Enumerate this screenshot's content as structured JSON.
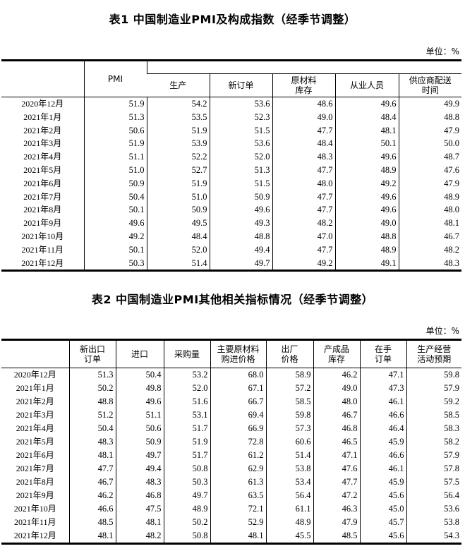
{
  "table1": {
    "title": "表1    中国制造业PMI及构成指数（经季节调整）",
    "unit": "单位：%",
    "headers": [
      "",
      "PMI",
      "生产",
      "新订单",
      "原材料\n库存",
      "从业人员",
      "供应商配送\n时间"
    ],
    "rows": [
      [
        "2020年12月",
        "51.9",
        "54.2",
        "53.6",
        "48.6",
        "49.6",
        "49.9"
      ],
      [
        "2021年1月",
        "51.3",
        "53.5",
        "52.3",
        "49.0",
        "48.4",
        "48.8"
      ],
      [
        "2021年2月",
        "50.6",
        "51.9",
        "51.5",
        "47.7",
        "48.1",
        "47.9"
      ],
      [
        "2021年3月",
        "51.9",
        "53.9",
        "53.6",
        "48.4",
        "50.1",
        "50.0"
      ],
      [
        "2021年4月",
        "51.1",
        "52.2",
        "52.0",
        "48.3",
        "49.6",
        "48.7"
      ],
      [
        "2021年5月",
        "51.0",
        "52.7",
        "51.3",
        "47.7",
        "48.9",
        "47.6"
      ],
      [
        "2021年6月",
        "50.9",
        "51.9",
        "51.5",
        "48.0",
        "49.2",
        "47.9"
      ],
      [
        "2021年7月",
        "50.4",
        "51.0",
        "50.9",
        "47.7",
        "49.6",
        "48.9"
      ],
      [
        "2021年8月",
        "50.1",
        "50.9",
        "49.6",
        "47.7",
        "49.6",
        "48.0"
      ],
      [
        "2021年9月",
        "49.6",
        "49.5",
        "49.3",
        "48.2",
        "49.0",
        "48.1"
      ],
      [
        "2021年10月",
        "49.2",
        "48.4",
        "48.8",
        "47.0",
        "48.8",
        "46.7"
      ],
      [
        "2021年11月",
        "50.1",
        "52.0",
        "49.4",
        "47.7",
        "48.9",
        "48.2"
      ],
      [
        "2021年12月",
        "50.3",
        "51.4",
        "49.7",
        "49.2",
        "49.1",
        "48.3"
      ]
    ]
  },
  "table2": {
    "title": "表2    中国制造业PMI其他相关指标情况（经季节调整）",
    "unit": "单位：%",
    "headers": [
      "",
      "新出口\n订单",
      "进口",
      "采购量",
      "主要原材料\n购进价格",
      "出厂\n价格",
      "产成品\n库存",
      "在手\n订单",
      "生产经营\n活动预期"
    ],
    "rows": [
      [
        "2020年12月",
        "51.3",
        "50.4",
        "53.2",
        "68.0",
        "58.9",
        "46.2",
        "47.1",
        "59.8"
      ],
      [
        "2021年1月",
        "50.2",
        "49.8",
        "52.0",
        "67.1",
        "57.2",
        "49.0",
        "47.3",
        "57.9"
      ],
      [
        "2021年2月",
        "48.8",
        "49.6",
        "51.6",
        "66.7",
        "58.5",
        "48.0",
        "46.1",
        "59.2"
      ],
      [
        "2021年3月",
        "51.2",
        "51.1",
        "53.1",
        "69.4",
        "59.8",
        "46.7",
        "46.6",
        "58.5"
      ],
      [
        "2021年4月",
        "50.4",
        "50.6",
        "51.7",
        "66.9",
        "57.3",
        "46.8",
        "46.4",
        "58.3"
      ],
      [
        "2021年5月",
        "48.3",
        "50.9",
        "51.9",
        "72.8",
        "60.6",
        "46.5",
        "45.9",
        "58.2"
      ],
      [
        "2021年6月",
        "48.1",
        "49.7",
        "51.7",
        "61.2",
        "51.4",
        "47.1",
        "46.6",
        "57.9"
      ],
      [
        "2021年7月",
        "47.7",
        "49.4",
        "50.8",
        "62.9",
        "53.8",
        "47.6",
        "46.1",
        "57.8"
      ],
      [
        "2021年8月",
        "46.7",
        "48.3",
        "50.3",
        "61.3",
        "53.4",
        "47.7",
        "45.9",
        "57.5"
      ],
      [
        "2021年9月",
        "46.2",
        "46.8",
        "49.7",
        "63.5",
        "56.4",
        "47.2",
        "45.6",
        "56.4"
      ],
      [
        "2021年10月",
        "46.6",
        "47.5",
        "48.9",
        "72.1",
        "61.1",
        "46.3",
        "45.0",
        "53.6"
      ],
      [
        "2021年11月",
        "48.5",
        "48.1",
        "50.2",
        "52.9",
        "48.9",
        "47.9",
        "45.7",
        "53.8"
      ],
      [
        "2021年12月",
        "48.1",
        "48.2",
        "50.8",
        "48.1",
        "45.5",
        "48.5",
        "45.6",
        "54.3"
      ]
    ]
  }
}
